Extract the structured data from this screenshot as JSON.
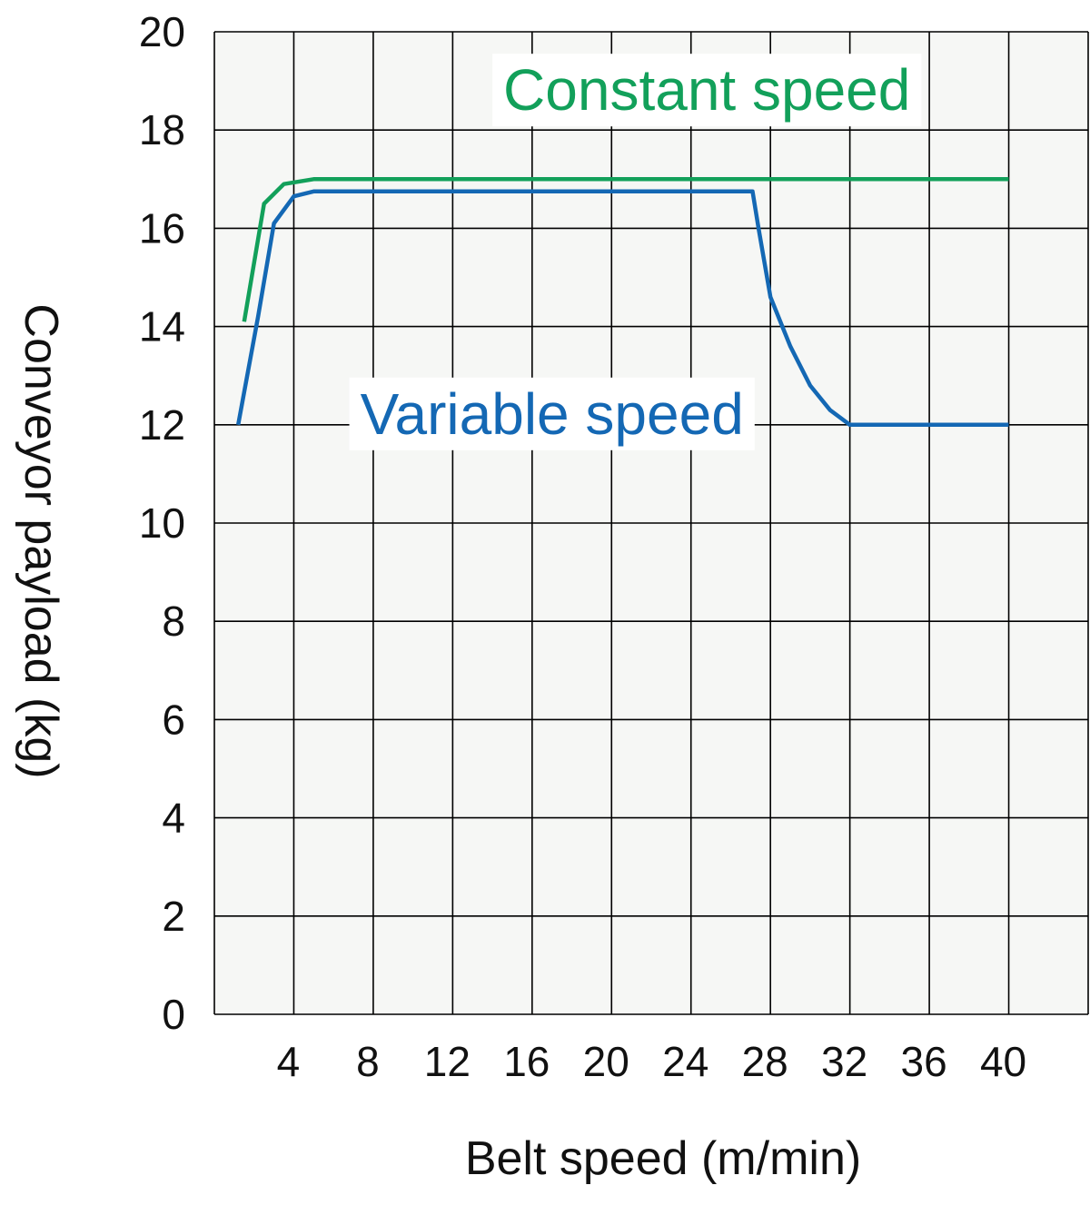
{
  "chart_data": {
    "type": "line",
    "xlabel": "Belt speed (m/min)",
    "ylabel": "Conveyor payload (kg)",
    "xlim": [
      0,
      44
    ],
    "ylim": [
      0,
      20
    ],
    "x_ticks": [
      4,
      8,
      12,
      16,
      20,
      24,
      28,
      32,
      36,
      40
    ],
    "y_ticks": [
      0,
      2,
      4,
      6,
      8,
      10,
      12,
      14,
      16,
      18,
      20
    ],
    "grid": true,
    "plot_background": "#f6f7f5",
    "series": [
      {
        "name": "Constant speed",
        "color": "#12a05a",
        "points": [
          [
            1.5,
            14.1
          ],
          [
            2.5,
            16.5
          ],
          [
            3.5,
            16.9
          ],
          [
            5,
            17
          ],
          [
            10,
            17
          ],
          [
            20,
            17
          ],
          [
            30,
            17
          ],
          [
            40,
            17
          ]
        ]
      },
      {
        "name": "Variable speed",
        "color": "#1468b4",
        "points": [
          [
            1.2,
            12
          ],
          [
            2.2,
            14.2
          ],
          [
            3.0,
            16.1
          ],
          [
            4.0,
            16.65
          ],
          [
            5,
            16.75
          ],
          [
            10,
            16.75
          ],
          [
            20,
            16.75
          ],
          [
            27.1,
            16.75
          ],
          [
            27.4,
            16.0
          ],
          [
            28.0,
            14.6
          ],
          [
            29.0,
            13.6
          ],
          [
            30.0,
            12.8
          ],
          [
            31.0,
            12.3
          ],
          [
            32.0,
            12
          ],
          [
            36,
            12
          ],
          [
            40,
            12
          ]
        ]
      }
    ]
  }
}
